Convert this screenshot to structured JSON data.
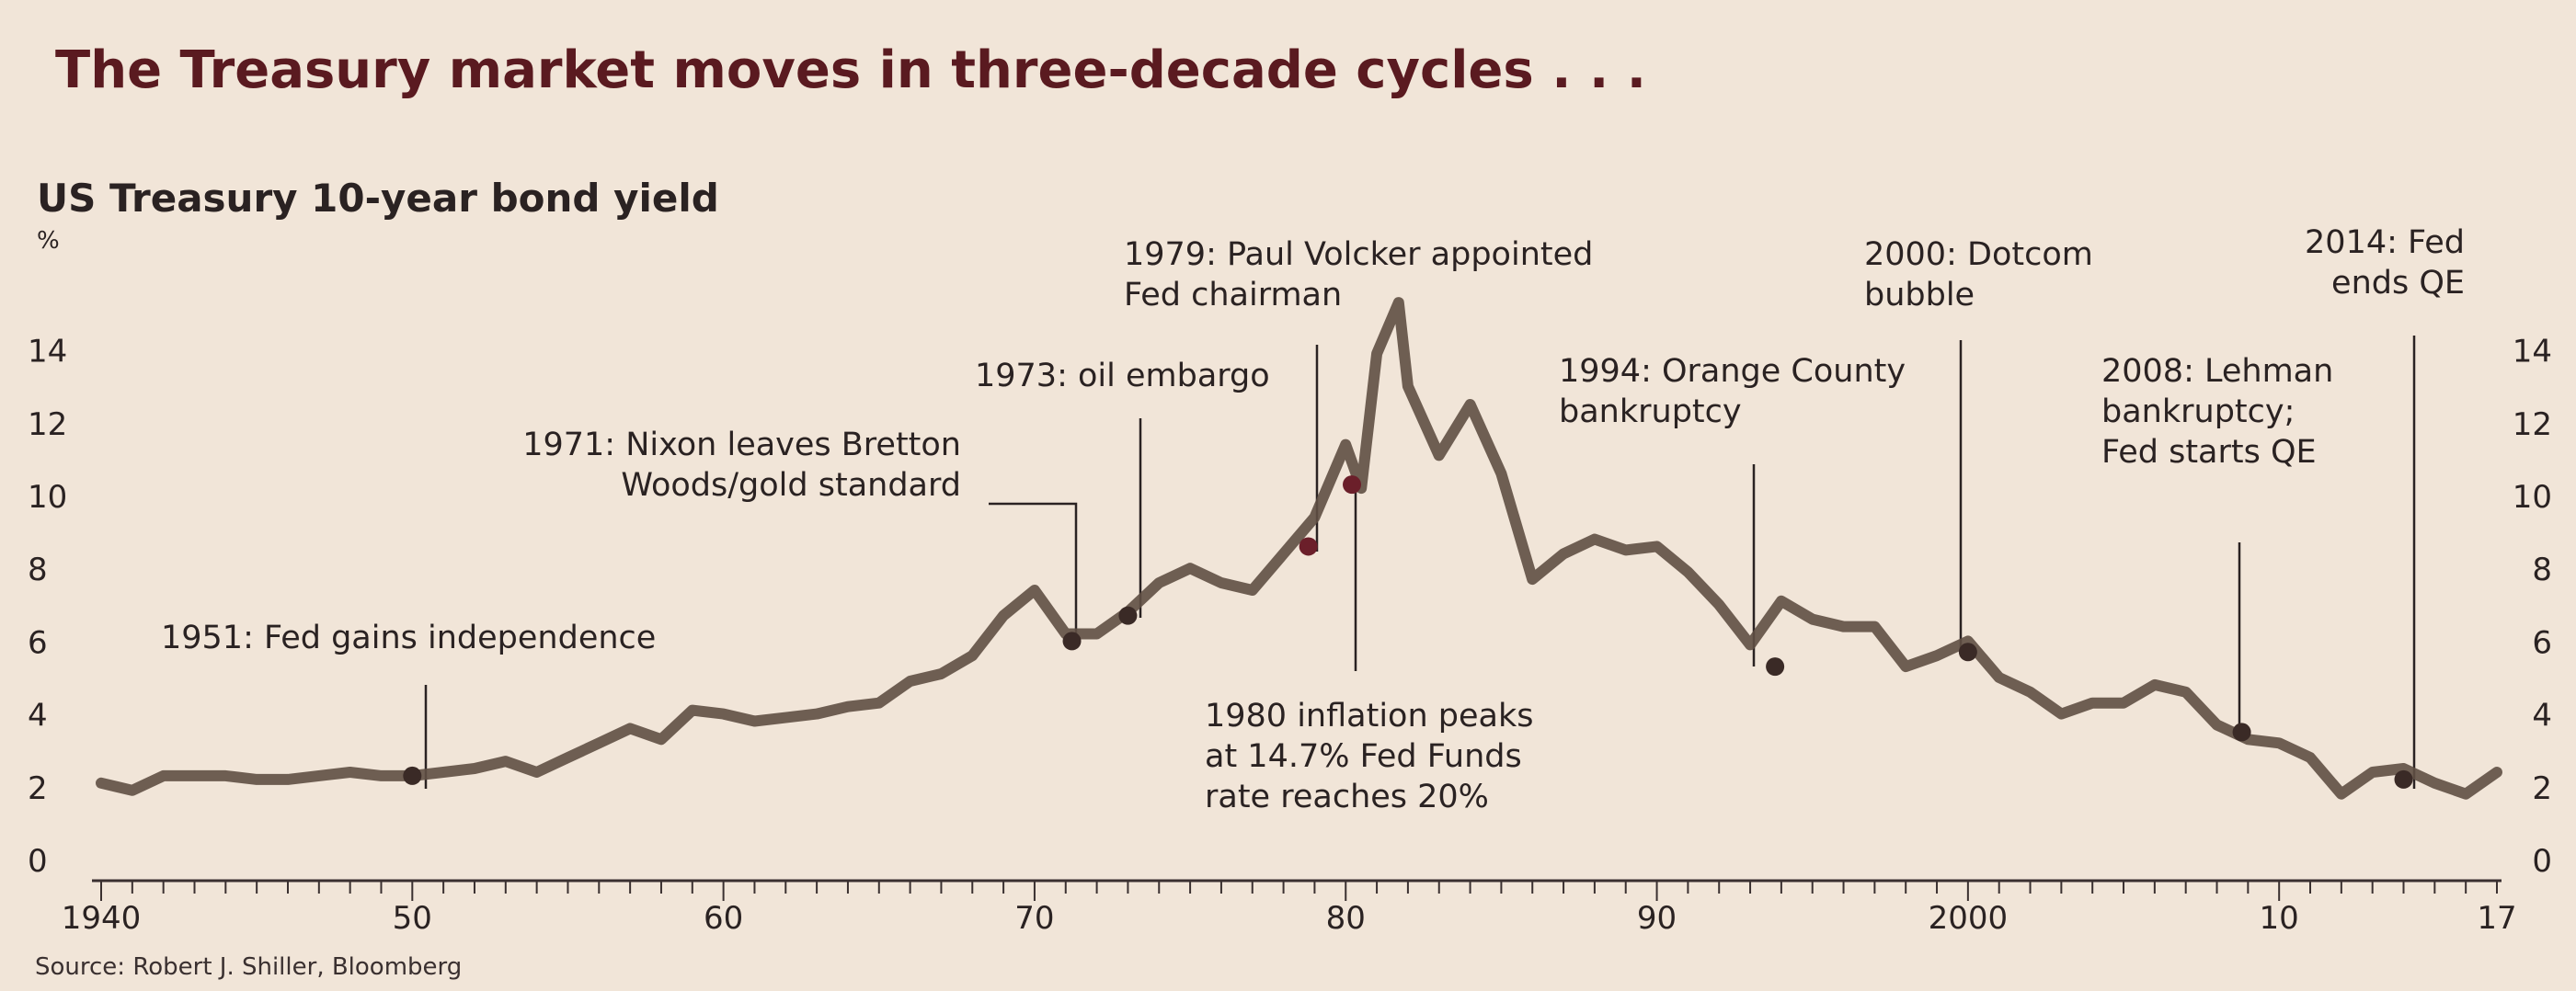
{
  "headline": "The Treasury market moves in three-decade cycles . . .",
  "source": "Source: Robert J. Shiller, Bloomberg",
  "colors": {
    "background": "#f1e5d8",
    "line": "#5f4f44",
    "marker": "#3a2a26",
    "marker_red": "#6b1f2a",
    "headline": "#5a1a20",
    "text": "#2a2222"
  },
  "chart_data": {
    "type": "line",
    "title": "US Treasury 10-year bond yield",
    "ylabel": "%",
    "xlabel": "",
    "xlim": [
      1940,
      2017
    ],
    "ylim": [
      0,
      15
    ],
    "yticks": [
      0,
      2,
      4,
      6,
      8,
      10,
      12,
      14
    ],
    "ytick_labels": [
      "0",
      "2",
      "4",
      "6",
      "8",
      "10",
      "12",
      "14"
    ],
    "xtick_labels": [
      {
        "x": 1940,
        "label": "1940"
      },
      {
        "x": 1950,
        "label": "50"
      },
      {
        "x": 1960,
        "label": "60"
      },
      {
        "x": 1970,
        "label": "70"
      },
      {
        "x": 1980,
        "label": "80"
      },
      {
        "x": 1990,
        "label": "90"
      },
      {
        "x": 2000,
        "label": "2000"
      },
      {
        "x": 2010,
        "label": "10"
      },
      {
        "x": 2017,
        "label": "17"
      }
    ],
    "grid": false,
    "legend": "none",
    "series": [
      {
        "x": [
          1940,
          1941,
          1942,
          1943,
          1944,
          1945,
          1946,
          1947,
          1948,
          1949,
          1950,
          1951,
          1952,
          1953,
          1954,
          1955,
          1956,
          1957,
          1958,
          1959,
          1960,
          1961,
          1962,
          1963,
          1964,
          1965,
          1966,
          1967,
          1968,
          1969,
          1970,
          1971,
          1972,
          1973,
          1974,
          1975,
          1976,
          1977,
          1978,
          1979,
          1980,
          1980.5,
          1981,
          1981.7,
          1982,
          1983,
          1984,
          1985,
          1986,
          1987,
          1988,
          1989,
          1990,
          1991,
          1992,
          1993,
          1994,
          1995,
          1996,
          1997,
          1998,
          1999,
          2000,
          2001,
          2002,
          2003,
          2004,
          2005,
          2006,
          2007,
          2008,
          2009,
          2010,
          2011,
          2012,
          2013,
          2014,
          2015,
          2016,
          2017
        ],
        "y": [
          2.1,
          1.9,
          2.3,
          2.3,
          2.3,
          2.2,
          2.2,
          2.3,
          2.4,
          2.3,
          2.3,
          2.4,
          2.5,
          2.7,
          2.4,
          2.8,
          3.2,
          3.6,
          3.3,
          4.1,
          4.0,
          3.8,
          3.9,
          4.0,
          4.2,
          4.3,
          4.9,
          5.1,
          5.6,
          6.7,
          7.4,
          6.2,
          6.2,
          6.8,
          7.6,
          8.0,
          7.6,
          7.4,
          8.4,
          9.4,
          11.4,
          10.2,
          13.9,
          15.3,
          13.0,
          11.1,
          12.5,
          10.6,
          7.7,
          8.4,
          8.8,
          8.5,
          8.6,
          7.9,
          7.0,
          5.9,
          7.1,
          6.6,
          6.4,
          6.4,
          5.3,
          5.6,
          6.0,
          5.0,
          4.6,
          4.0,
          4.3,
          4.3,
          4.8,
          4.6,
          3.7,
          3.3,
          3.2,
          2.8,
          1.8,
          2.4,
          2.5,
          2.1,
          1.8,
          2.4
        ]
      }
    ],
    "markers": [
      {
        "x": 1950.0,
        "y": 2.3,
        "color": "dark"
      },
      {
        "x": 1971.2,
        "y": 6.0,
        "color": "dark"
      },
      {
        "x": 1973.0,
        "y": 6.7,
        "color": "dark"
      },
      {
        "x": 1978.8,
        "y": 8.6,
        "color": "red"
      },
      {
        "x": 1980.2,
        "y": 10.3,
        "color": "red"
      },
      {
        "x": 1993.8,
        "y": 5.3,
        "color": "dark"
      },
      {
        "x": 2000.0,
        "y": 5.7,
        "color": "dark"
      },
      {
        "x": 2008.8,
        "y": 3.5,
        "color": "dark"
      },
      {
        "x": 2014.0,
        "y": 2.2,
        "color": "dark"
      }
    ],
    "annotations": [
      {
        "lines": [
          "1951: Fed gains independence"
        ]
      },
      {
        "lines": [
          "1971: Nixon leaves Bretton",
          "Woods/gold standard"
        ]
      },
      {
        "lines": [
          "1973: oil embargo"
        ]
      },
      {
        "lines": [
          "1979: Paul Volcker appointed",
          "Fed chairman"
        ]
      },
      {
        "lines": [
          "1980 inflation peaks",
          "at 14.7% Fed Funds",
          "rate reaches 20%"
        ]
      },
      {
        "lines": [
          "1994: Orange County",
          "bankruptcy"
        ]
      },
      {
        "lines": [
          "2000: Dotcom",
          "bubble"
        ]
      },
      {
        "lines": [
          "2008: Lehman",
          "bankruptcy;",
          "Fed starts QE"
        ]
      },
      {
        "lines": [
          "2014: Fed",
          "ends QE"
        ]
      }
    ]
  }
}
